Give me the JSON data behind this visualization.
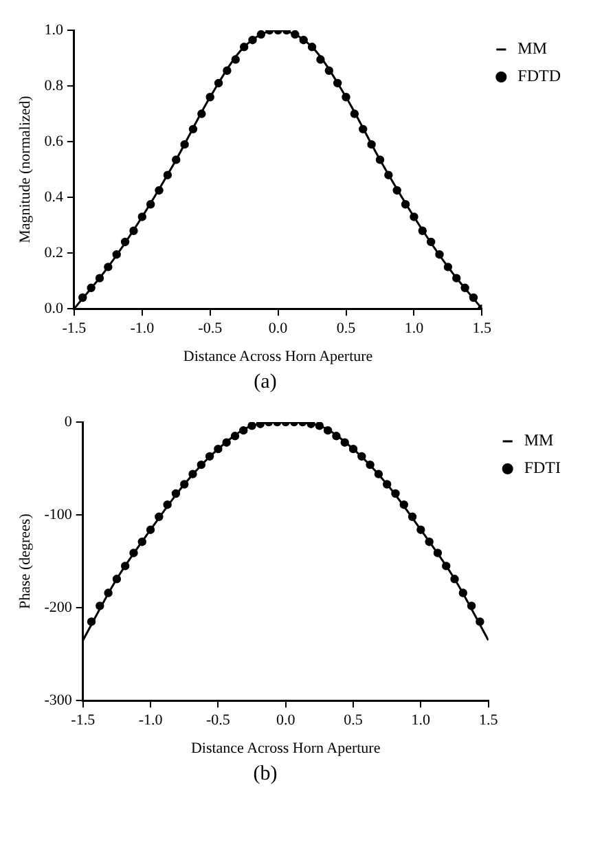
{
  "chart_data": [
    {
      "type": "line",
      "xlabel": "Distance Across Horn Aperture",
      "ylabel": "Magnitude (normalized)",
      "annotations": [
        "(a)"
      ],
      "legend": "right",
      "grid": false,
      "xlim": [
        -1.5,
        1.5
      ],
      "ylim": [
        0,
        1
      ],
      "xticks": [
        {
          "value": -1.5,
          "label": "-1.5"
        },
        {
          "value": -1,
          "label": "-1.0"
        },
        {
          "value": -0.5,
          "label": "-0.5"
        },
        {
          "value": 0,
          "label": "0.0"
        },
        {
          "value": 0.5,
          "label": "0.5"
        },
        {
          "value": 1,
          "label": "1.0"
        },
        {
          "value": 1.5,
          "label": "1.5"
        }
      ],
      "yticks": [
        {
          "value": 0,
          "label": "0.0"
        },
        {
          "value": 0.2,
          "label": "0.2"
        },
        {
          "value": 0.4,
          "label": "0.4"
        },
        {
          "value": 0.6,
          "label": "0.6"
        },
        {
          "value": 0.8,
          "label": "0.8"
        },
        {
          "value": 1,
          "label": "1.0"
        }
      ],
      "series": [
        {
          "name": "MM",
          "type": "line",
          "color": "#000000",
          "marker": "none",
          "line_style": "solid",
          "x": [
            -1.5,
            -1.25,
            -1,
            -0.75,
            -0.5,
            -0.25,
            0,
            0.25,
            0.5,
            0.75,
            1,
            1.25,
            1.5
          ],
          "values": [
            0,
            0.15,
            0.33,
            0.535,
            0.76,
            0.94,
            1,
            0.94,
            0.76,
            0.535,
            0.33,
            0.15,
            0
          ]
        },
        {
          "name": "FDTD",
          "type": "scatter",
          "color": "#000000",
          "marker": "circle",
          "x": [
            -1.4375,
            -1.375,
            -1.3125,
            -1.25,
            -1.1875,
            -1.125,
            -1.0625,
            -1,
            -0.9375,
            -0.875,
            -0.8125,
            -0.75,
            -0.6875,
            -0.625,
            -0.5625,
            -0.5,
            -0.4375,
            -0.375,
            -0.3125,
            -0.25,
            -0.1875,
            -0.125,
            -0.0625,
            0,
            0.0625,
            0.125,
            0.1875,
            0.25,
            0.3125,
            0.375,
            0.4375,
            0.5,
            0.5625,
            0.625,
            0.6875,
            0.75,
            0.8125,
            0.875,
            0.9375,
            1,
            1.0625,
            1.125,
            1.1875,
            1.25,
            1.3125,
            1.375,
            1.4375,
            1.5
          ],
          "values": [
            0.04,
            0.075,
            0.11,
            0.15,
            0.195,
            0.24,
            0.28,
            0.33,
            0.375,
            0.425,
            0.48,
            0.535,
            0.59,
            0.645,
            0.7,
            0.76,
            0.81,
            0.855,
            0.895,
            0.94,
            0.965,
            0.985,
            1,
            1,
            1,
            0.985,
            0.965,
            0.94,
            0.895,
            0.855,
            0.81,
            0.76,
            0.7,
            0.645,
            0.59,
            0.535,
            0.48,
            0.425,
            0.375,
            0.33,
            0.28,
            0.24,
            0.195,
            0.15,
            0.11,
            0.075,
            0.04,
            0
          ]
        }
      ]
    },
    {
      "type": "line",
      "xlabel": "Distance Across Horn Aperture",
      "ylabel": "Phase (degrees)",
      "annotations": [
        "(b)"
      ],
      "legend": "right",
      "grid": false,
      "xlim": [
        -1.5,
        1.5
      ],
      "ylim": [
        -300,
        0
      ],
      "xticks": [
        {
          "value": -1.5,
          "label": "-1.5"
        },
        {
          "value": -1,
          "label": "-1.0"
        },
        {
          "value": -0.5,
          "label": "-0.5"
        },
        {
          "value": 0,
          "label": "0.0"
        },
        {
          "value": 0.5,
          "label": "0.5"
        },
        {
          "value": 1,
          "label": "1.0"
        },
        {
          "value": 1.5,
          "label": "1.5"
        }
      ],
      "yticks": [
        -300,
        -200,
        -100,
        0
      ],
      "series": [
        {
          "name": "MM",
          "type": "line",
          "color": "#000000",
          "marker": "none",
          "line_style": "solid",
          "x": [
            -1.5,
            -1.25,
            -1,
            -0.75,
            -0.5,
            -0.25,
            0,
            0.25,
            0.5,
            0.75,
            1,
            1.25,
            1.5
          ],
          "values": [
            -235,
            -169,
            -116,
            -67,
            -29,
            -4,
            0,
            -4,
            -29,
            -67,
            -116,
            -169,
            -235
          ]
        },
        {
          "name": "FDTI",
          "type": "scatter",
          "color": "#000000",
          "marker": "circle",
          "x": [
            -1.4375,
            -1.375,
            -1.3125,
            -1.25,
            -1.1875,
            -1.125,
            -1.0625,
            -1,
            -0.9375,
            -0.875,
            -0.8125,
            -0.75,
            -0.6875,
            -0.625,
            -0.5625,
            -0.5,
            -0.4375,
            -0.375,
            -0.3125,
            -0.25,
            -0.1875,
            -0.125,
            -0.0625,
            0,
            0.0625,
            0.125,
            0.1875,
            0.25,
            0.3125,
            0.375,
            0.4375,
            0.5,
            0.5625,
            0.625,
            0.6875,
            0.75,
            0.8125,
            0.875,
            0.9375,
            1,
            1.0625,
            1.125,
            1.1875,
            1.25,
            1.3125,
            1.375,
            1.4375
          ],
          "values": [
            -215,
            -198,
            -184,
            -169,
            -155,
            -141,
            -129,
            -116,
            -102,
            -89,
            -77,
            -67,
            -56,
            -46,
            -37,
            -29,
            -22,
            -15,
            -9,
            -4,
            -2,
            0,
            0,
            0,
            0,
            0,
            -2,
            -4,
            -9,
            -15,
            -22,
            -29,
            -37,
            -46,
            -56,
            -67,
            -77,
            -89,
            -102,
            -116,
            -129,
            -141,
            -155,
            -169,
            -184,
            -198,
            -215
          ]
        }
      ]
    }
  ]
}
